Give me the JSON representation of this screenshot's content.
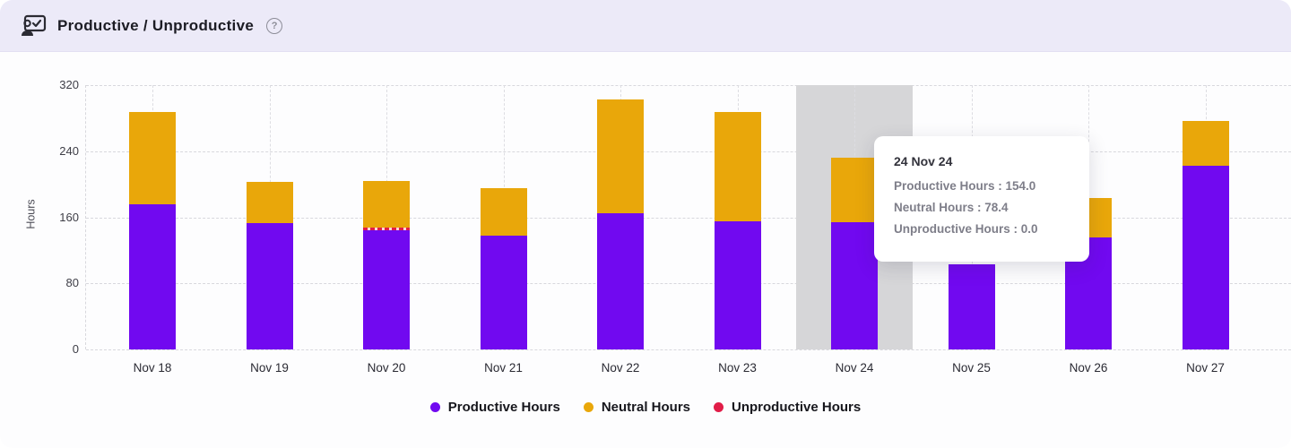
{
  "header": {
    "title": "Productive / Unproductive",
    "help_icon": "?"
  },
  "chart_data": {
    "type": "bar",
    "stacked": true,
    "categories": [
      "Nov 18",
      "Nov 19",
      "Nov 20",
      "Nov 21",
      "Nov 22",
      "Nov 23",
      "Nov 24",
      "Nov 25",
      "Nov 26",
      "Nov 27"
    ],
    "series": [
      {
        "name": "Productive Hours",
        "color": "#7109f0",
        "values": [
          176,
          153,
          144,
          138,
          165,
          155,
          154,
          103,
          136,
          222
        ]
      },
      {
        "name": "Unproductive Hours",
        "color": "#e11d48",
        "values": [
          0,
          0,
          2,
          0,
          0,
          0,
          0,
          0,
          0,
          0
        ]
      },
      {
        "name": "Neutral Hours",
        "color": "#e9a70a",
        "values": [
          112,
          50,
          57,
          57,
          138,
          133,
          78.4,
          0,
          47,
          55
        ]
      }
    ],
    "title": "Productive / Unproductive",
    "xlabel": "",
    "ylabel": "Hours",
    "ylim": [
      0,
      320
    ],
    "yticks": [
      0,
      80,
      160,
      240,
      320
    ],
    "grid": true,
    "legend_position": "bottom",
    "highlighted_category": "Nov 24",
    "highlight_color": "#d6d6d8"
  },
  "tooltip": {
    "title": "24 Nov 24",
    "rows": [
      "Productive Hours : 154.0",
      "Neutral Hours : 78.4",
      "Unproductive Hours : 0.0"
    ]
  },
  "legend": {
    "items": [
      {
        "label": "Productive Hours",
        "color": "#7109f0"
      },
      {
        "label": "Neutral Hours",
        "color": "#e9a70a"
      },
      {
        "label": "Unproductive Hours",
        "color": "#e11d48"
      }
    ]
  }
}
